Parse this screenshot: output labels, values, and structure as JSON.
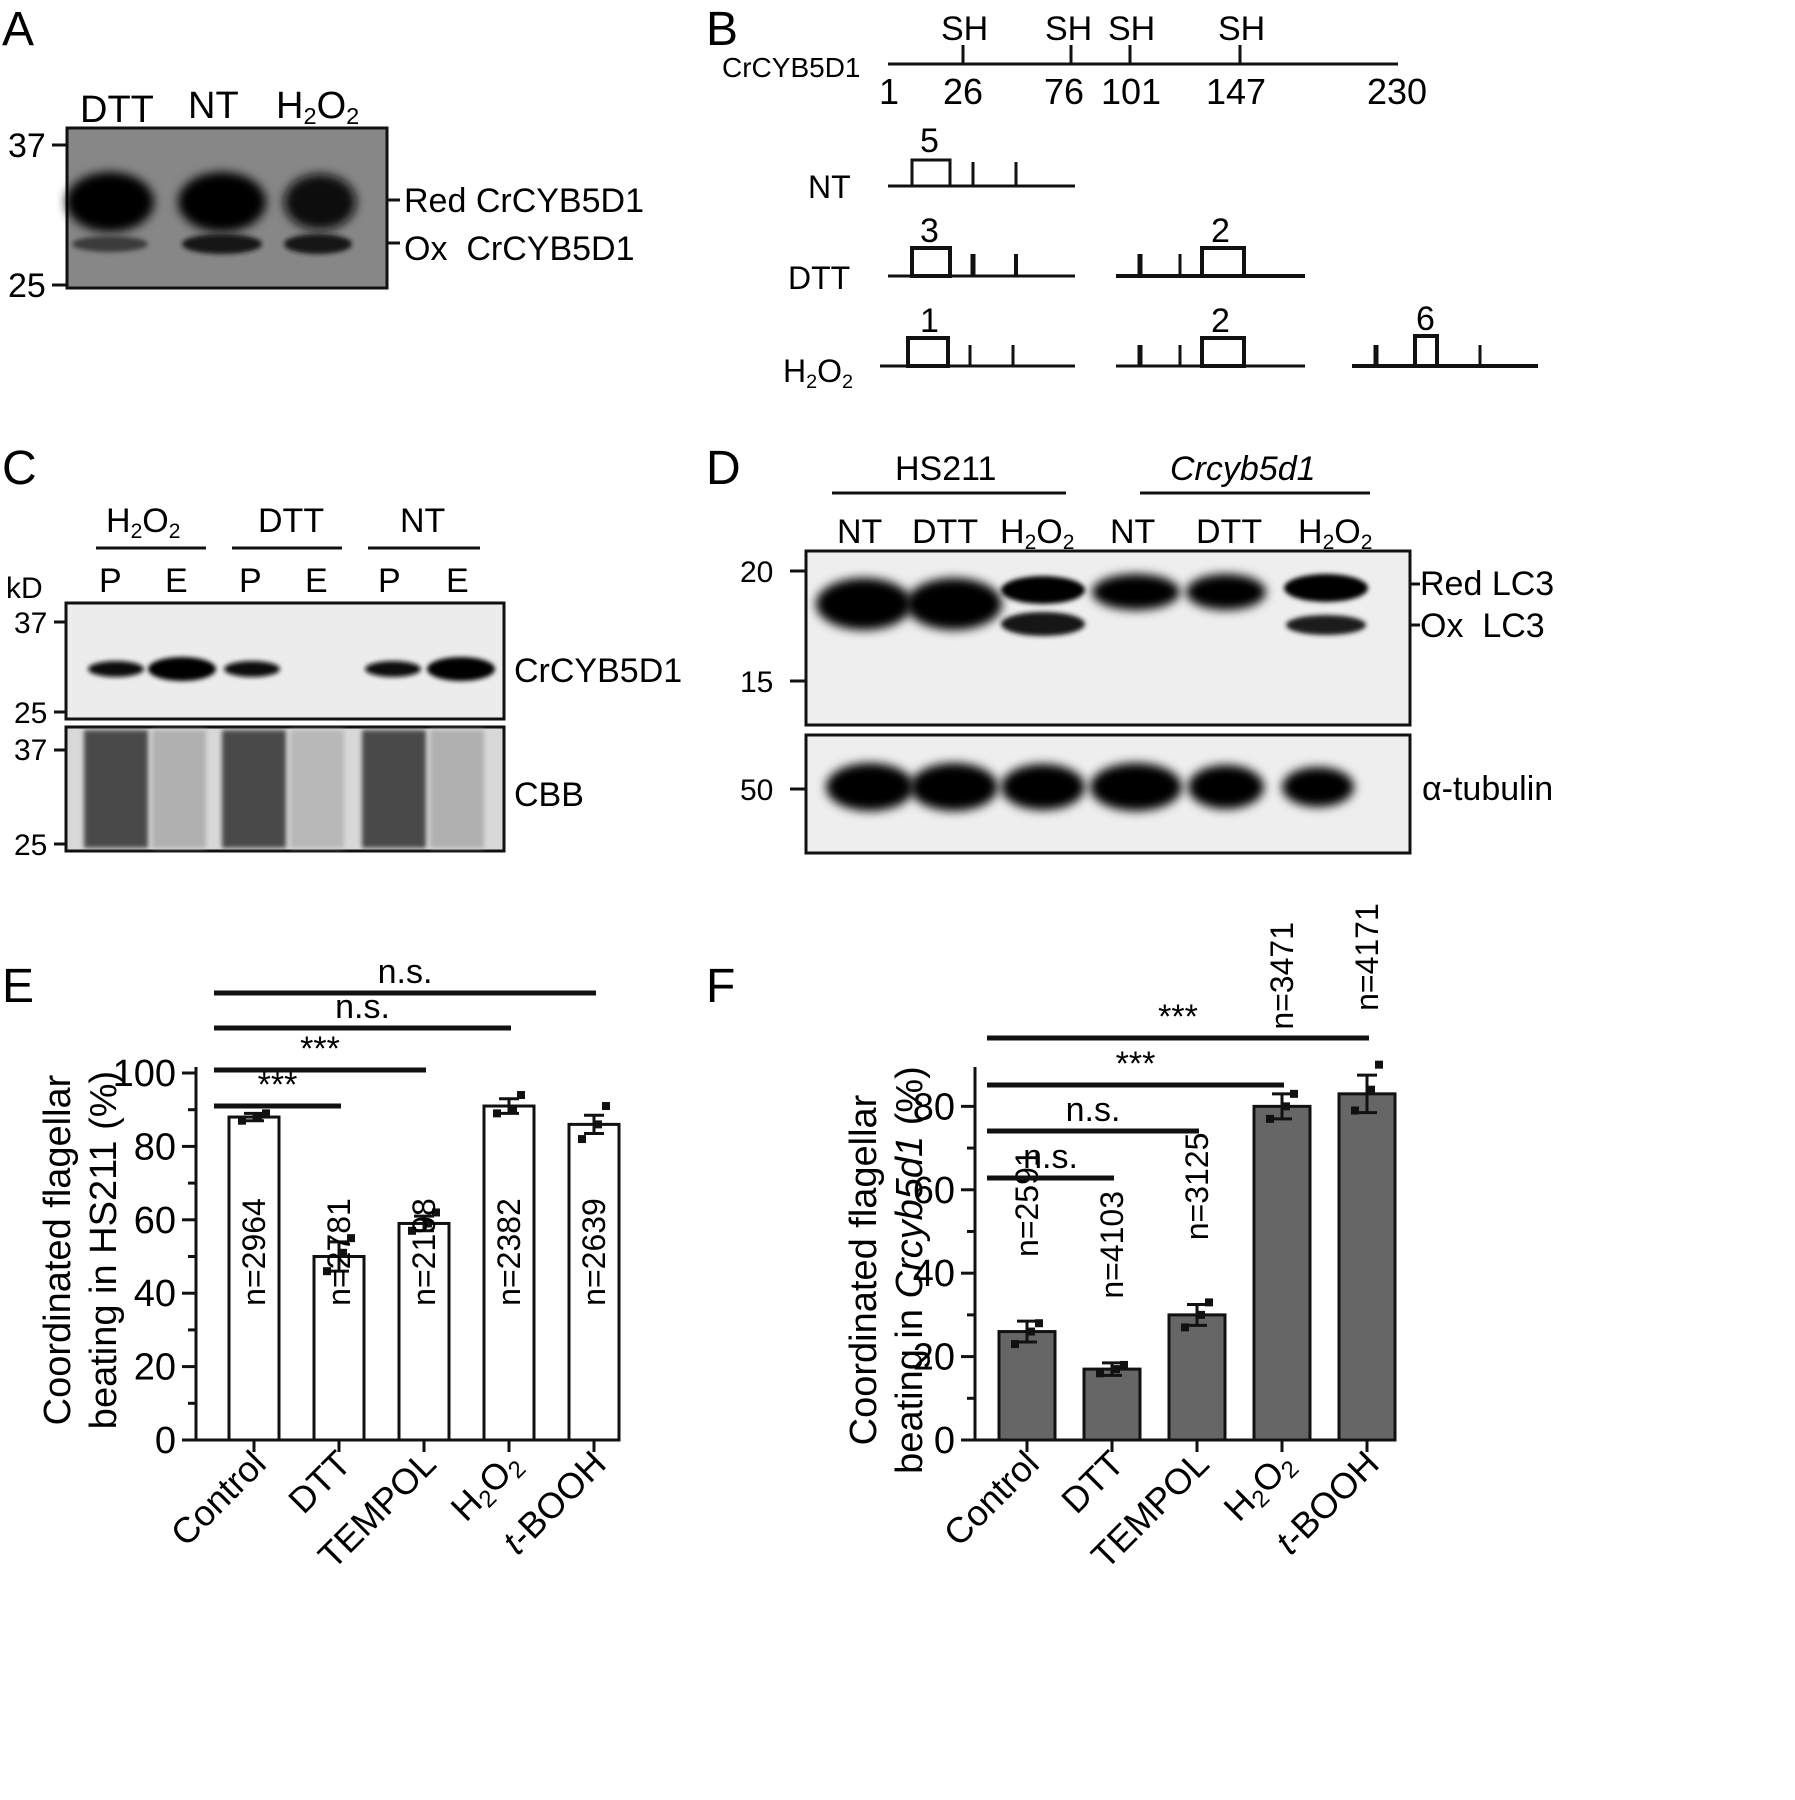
{
  "panel_labels": {
    "A": "A",
    "B": "B",
    "C": "C",
    "D": "D",
    "E": "E",
    "F": "F"
  },
  "panelA": {
    "lanes": [
      "DTT",
      "NT",
      "H2O2"
    ],
    "markers": [
      "37",
      "25"
    ],
    "band_labels": [
      "Red CrCYB5D1",
      "Ox  CrCYB5D1"
    ],
    "sub2": "2"
  },
  "panelB": {
    "protein": "CrCYB5D1",
    "positions": [
      "1",
      "26",
      "76",
      "101",
      "147",
      "230"
    ],
    "sh_label": "SH",
    "conditions": [
      "NT",
      "DTT",
      "H2O2"
    ],
    "counts": {
      "NT": [
        "5"
      ],
      "DTT": [
        "3",
        "2"
      ],
      "H2O2": [
        "1",
        "2",
        "6"
      ]
    }
  },
  "panelC": {
    "groups": [
      "H2O2",
      "DTT",
      "NT"
    ],
    "lanes": [
      "P",
      "E",
      "P",
      "E",
      "P",
      "E"
    ],
    "kd_label": "kD",
    "markers_top": [
      "37",
      "25"
    ],
    "markers_bottom": [
      "37",
      "25"
    ],
    "blot_label": "CrCYB5D1",
    "gel_label": "CBB"
  },
  "panelD": {
    "strains": [
      "HS211",
      "Crcyb5d1"
    ],
    "lanes": [
      "NT",
      "DTT",
      "H2O2",
      "NT",
      "DTT",
      "H2O2"
    ],
    "markers_top": [
      "20",
      "15"
    ],
    "markers_bottom": [
      "50"
    ],
    "band_labels": [
      "Red LC3",
      "Ox  LC3"
    ],
    "loading_label": "α-tubulin"
  },
  "chart_data": [
    {
      "panel": "E",
      "type": "bar",
      "categories": [
        "Control",
        "DTT",
        "TEMPOL",
        "H2O2",
        "t-BOOH"
      ],
      "values": [
        88,
        50,
        59,
        91,
        86
      ],
      "errors": [
        1,
        4,
        2,
        2,
        2.5
      ],
      "points": [
        [
          87,
          88,
          89
        ],
        [
          46,
          51,
          55
        ],
        [
          57,
          59,
          62
        ],
        [
          89,
          90,
          94
        ],
        [
          82,
          86,
          91
        ]
      ],
      "n_labels": [
        "n=2964",
        "n=2781",
        "n=2198",
        "n=2382",
        "n=2639"
      ],
      "ylabel_line1": "Coordinated flagellar",
      "ylabel_line2": "beating in HS211 (%)",
      "yticks": [
        "0",
        "20",
        "40",
        "60",
        "80",
        "100"
      ],
      "ylim": [
        0,
        100
      ],
      "bar_color": "#ffffff",
      "comparisons": [
        {
          "label": "***",
          "from": 0,
          "to": 1
        },
        {
          "label": "***",
          "from": 0,
          "to": 2
        },
        {
          "label": "n.s.",
          "from": 0,
          "to": 3
        },
        {
          "label": "n.s.",
          "from": 0,
          "to": 4
        }
      ]
    },
    {
      "panel": "F",
      "type": "bar",
      "categories": [
        "Control",
        "DTT",
        "TEMPOL",
        "H2O2",
        "t-BOOH"
      ],
      "values": [
        26,
        17,
        30,
        80,
        83
      ],
      "errors": [
        2.5,
        1.5,
        2.5,
        3,
        4.5
      ],
      "points": [
        [
          23,
          26,
          28
        ],
        [
          16,
          17,
          18
        ],
        [
          27,
          30,
          33
        ],
        [
          77,
          80,
          83
        ],
        [
          79,
          84,
          90
        ]
      ],
      "n_labels": [
        "n=2591",
        "n=4103",
        "n=3125",
        "n=3471",
        "n=4171"
      ],
      "ylabel_line1": "Coordinated flagellar",
      "ylabel_line2a": "beating in ",
      "ylabel_italic": "Crcyb5d1",
      "ylabel_line2b": " (%)",
      "yticks": [
        "0",
        "20",
        "40",
        "60",
        "80"
      ],
      "ylim": [
        0,
        88
      ],
      "bar_color": "#666666",
      "comparisons": [
        {
          "label": "n.s.",
          "from": 0,
          "to": 1
        },
        {
          "label": "n.s.",
          "from": 0,
          "to": 2
        },
        {
          "label": "***",
          "from": 0,
          "to": 3
        },
        {
          "label": "***",
          "from": 0,
          "to": 4
        }
      ]
    }
  ]
}
